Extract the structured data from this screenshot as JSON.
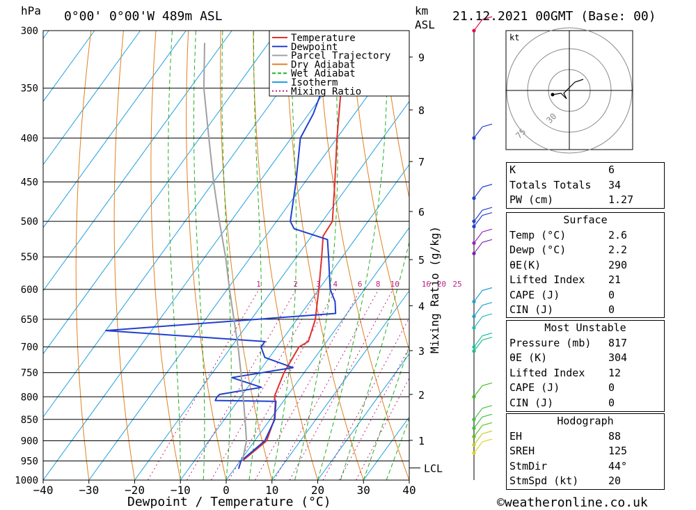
{
  "header": {
    "hpa_unit": "hPa",
    "location": "0°00' 0°00'W 489m ASL",
    "km_unit": "km",
    "asl": "ASL",
    "datetime": "21.12.2021 00GMT (Base: 00)"
  },
  "chart_data": {
    "type": "line",
    "subtype": "skew-T log-P diagram",
    "xlabel": "Dewpoint / Temperature (°C)",
    "ylabel_left": "hPa",
    "ylabel_right": "Mixing Ratio (g/kg)",
    "x_ticks": [
      "−40",
      "−30",
      "−20",
      "−10",
      "0",
      "10",
      "20",
      "30",
      "40"
    ],
    "x_tick_values": [
      -40,
      -30,
      -20,
      -10,
      0,
      10,
      20,
      30,
      40
    ],
    "pressure_levels": [
      300,
      350,
      400,
      450,
      500,
      550,
      600,
      650,
      700,
      750,
      800,
      850,
      900,
      950,
      1000
    ],
    "pressure_labels": [
      "300",
      "350",
      "400",
      "450",
      "500",
      "550",
      "600",
      "650",
      "700",
      "750",
      "800",
      "850",
      "900",
      "950",
      "1000"
    ],
    "km_ticks": [
      {
        "km": 1,
        "p": 899
      },
      {
        "km": 2,
        "p": 795
      },
      {
        "km": 3,
        "p": 707
      },
      {
        "km": 4,
        "p": 627
      },
      {
        "km": 5,
        "p": 554
      },
      {
        "km": 6,
        "p": 487
      },
      {
        "km": 7,
        "p": 426
      },
      {
        "km": 8,
        "p": 371
      },
      {
        "km": 9,
        "p": 322
      }
    ],
    "km_labels": [
      "1",
      "2",
      "3",
      "4",
      "5",
      "6",
      "7",
      "8",
      "9"
    ],
    "lcl_label": "LCL",
    "lcl_pressure": 968,
    "mixing_ratios": [
      1,
      2,
      3,
      4,
      6,
      8,
      10,
      16,
      20,
      25
    ],
    "mixing_ratio_labels": [
      "1",
      "2",
      "3",
      "4",
      "6",
      "8",
      "10",
      "16",
      "20",
      "25"
    ],
    "legend": {
      "position": "top-right",
      "entries": [
        {
          "label": "Temperature",
          "color": "#e03030",
          "style": "solid"
        },
        {
          "label": "Dewpoint",
          "color": "#2040d0",
          "style": "solid"
        },
        {
          "label": "Parcel Trajectory",
          "color": "#a0a0a0",
          "style": "solid"
        },
        {
          "label": "Dry Adiabat",
          "color": "#e08020",
          "style": "solid"
        },
        {
          "label": "Wet Adiabat",
          "color": "#20b020",
          "style": "dashed"
        },
        {
          "label": "Isotherm",
          "color": "#20a0e0",
          "style": "solid"
        },
        {
          "label": "Mixing Ratio",
          "color": "#c02080",
          "style": "dotted"
        }
      ]
    },
    "series": [
      {
        "name": "Temperature",
        "color": "#e03030",
        "points": [
          [
            950,
            0.5
          ],
          [
            900,
            2.6
          ],
          [
            850,
            0.9
          ],
          [
            810,
            -1.7
          ],
          [
            800,
            -2.7
          ],
          [
            750,
            -4.4
          ],
          [
            700,
            -5.2
          ],
          [
            690,
            -4.0
          ],
          [
            650,
            -6.0
          ],
          [
            600,
            -10.0
          ],
          [
            550,
            -14.5
          ],
          [
            520,
            -17.5
          ],
          [
            500,
            -17.8
          ],
          [
            450,
            -23.5
          ],
          [
            400,
            -30.0
          ],
          [
            350,
            -37.0
          ],
          [
            300,
            -44.5
          ]
        ]
      },
      {
        "name": "Dewpoint",
        "color": "#2040d0",
        "points": [
          [
            970,
            0.9
          ],
          [
            950,
            0.2
          ],
          [
            900,
            2.2
          ],
          [
            850,
            1.0
          ],
          [
            810,
            -1.6
          ],
          [
            808,
            -15.0
          ],
          [
            800,
            -15.2
          ],
          [
            795,
            -15.0
          ],
          [
            780,
            -7.0
          ],
          [
            760,
            -15.0
          ],
          [
            740,
            -3.2
          ],
          [
            720,
            -11.0
          ],
          [
            700,
            -13.5
          ],
          [
            690,
            -13.5
          ],
          [
            670,
            -50.0
          ],
          [
            640,
            -2.5
          ],
          [
            620,
            -4.5
          ],
          [
            600,
            -7.5
          ],
          [
            550,
            -13.0
          ],
          [
            525,
            -16.0
          ],
          [
            510,
            -25.0
          ],
          [
            500,
            -27.0
          ],
          [
            450,
            -32.0
          ],
          [
            400,
            -38.0
          ],
          [
            375,
            -39.0
          ],
          [
            350,
            -41.0
          ],
          [
            310,
            -46.0
          ],
          [
            300,
            -48.0
          ]
        ]
      },
      {
        "name": "Parcel Trajectory",
        "color": "#a0a0a0",
        "points": [
          [
            950,
            0.5
          ],
          [
            900,
            -1.8
          ],
          [
            850,
            -5.5
          ],
          [
            800,
            -9.5
          ],
          [
            750,
            -13.8
          ],
          [
            700,
            -18.5
          ],
          [
            650,
            -23.8
          ],
          [
            600,
            -29.5
          ],
          [
            550,
            -35.5
          ],
          [
            500,
            -42.5
          ],
          [
            450,
            -50.0
          ],
          [
            400,
            -58.0
          ],
          [
            350,
            -67.0
          ],
          [
            310,
            -74.0
          ]
        ]
      }
    ]
  },
  "hodograph": {
    "unit": "kt",
    "ring_labels": [
      "30",
      "75"
    ],
    "points": [
      [
        -12,
        -3
      ],
      [
        -6,
        -2
      ],
      [
        -2,
        -6
      ],
      [
        -4,
        -2
      ],
      [
        0,
        2
      ],
      [
        4,
        6
      ],
      [
        10,
        8
      ]
    ]
  },
  "wind_profile": {
    "levels": [
      {
        "p": 300,
        "color": "#e0104a"
      },
      {
        "p": 400,
        "color": "#2040d0"
      },
      {
        "p": 470,
        "color": "#2040d0"
      },
      {
        "p": 500,
        "color": "#2040d0"
      },
      {
        "p": 507,
        "color": "#2040d0"
      },
      {
        "p": 530,
        "color": "#a020c0"
      },
      {
        "p": 545,
        "color": "#8020b0"
      },
      {
        "p": 620,
        "color": "#20a0d0"
      },
      {
        "p": 645,
        "color": "#20a0d0"
      },
      {
        "p": 665,
        "color": "#20c0b0"
      },
      {
        "p": 700,
        "color": "#20c0b0"
      },
      {
        "p": 708,
        "color": "#20c080"
      },
      {
        "p": 800,
        "color": "#40c020"
      },
      {
        "p": 850,
        "color": "#40c040"
      },
      {
        "p": 870,
        "color": "#40c040"
      },
      {
        "p": 890,
        "color": "#60c020"
      },
      {
        "p": 910,
        "color": "#c0d020"
      },
      {
        "p": 930,
        "color": "#e0d020"
      }
    ]
  },
  "indices": {
    "general": [
      {
        "label": "K",
        "value": "6"
      },
      {
        "label": "Totals Totals",
        "value": "34"
      },
      {
        "label": "PW (cm)",
        "value": "1.27"
      }
    ],
    "surface": {
      "title": "Surface",
      "rows": [
        {
          "label": "Temp (°C)",
          "value": "2.6"
        },
        {
          "label": "Dewp (°C)",
          "value": "2.2"
        },
        {
          "label": "θE(K)",
          "value": "290"
        },
        {
          "label": "Lifted Index",
          "value": "21"
        },
        {
          "label": "CAPE (J)",
          "value": "0"
        },
        {
          "label": "CIN (J)",
          "value": "0"
        }
      ]
    },
    "most_unstable": {
      "title": "Most Unstable",
      "rows": [
        {
          "label": "Pressure (mb)",
          "value": "817"
        },
        {
          "label": "θE (K)",
          "value": "304"
        },
        {
          "label": "Lifted Index",
          "value": "12"
        },
        {
          "label": "CAPE (J)",
          "value": "0"
        },
        {
          "label": "CIN (J)",
          "value": "0"
        }
      ]
    },
    "hodograph": {
      "title": "Hodograph",
      "rows": [
        {
          "label": "EH",
          "value": "88"
        },
        {
          "label": "SREH",
          "value": "125"
        },
        {
          "label": "StmDir",
          "value": "44°"
        },
        {
          "label": "StmSpd (kt)",
          "value": "20"
        }
      ]
    }
  },
  "footer": {
    "credit": "©weatheronline.co.uk"
  }
}
